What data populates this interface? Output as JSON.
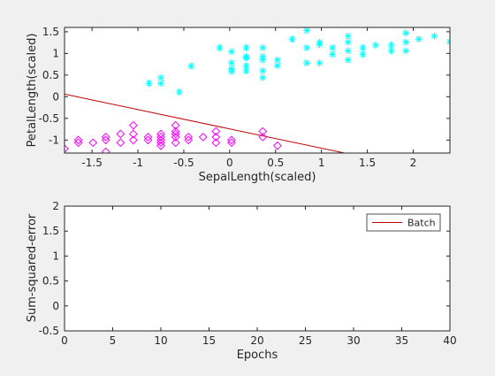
{
  "figure": {
    "background": "#f0f0f0",
    "axes_color": "#262626",
    "plot_background": "#ffffff"
  },
  "chart_data": [
    {
      "type": "scatter",
      "title": "",
      "xlabel": "SepalLength(scaled)",
      "ylabel": "PetalLength(scaled)",
      "xlim": [
        -1.8,
        2.4
      ],
      "ylim": [
        -1.3,
        1.6
      ],
      "xticks": [
        -1.5,
        -1,
        -0.5,
        0,
        0.5,
        1,
        1.5,
        2
      ],
      "xtick_labels": [
        "-1.5",
        "-1",
        "-0.5",
        "0",
        "0.5",
        "1",
        "1.5",
        "2"
      ],
      "yticks": [
        -1,
        -0.5,
        0,
        0.5,
        1,
        1.5
      ],
      "ytick_labels": [
        "-1",
        "-0.5",
        "0",
        "0.5",
        "1",
        "1.5"
      ],
      "grid": false,
      "series": [
        {
          "marker": "asterisk",
          "color": "#00ffff",
          "points": [
            [
              -0.88,
              0.31
            ],
            [
              -0.75,
              0.44
            ],
            [
              -0.75,
              0.31
            ],
            [
              -0.55,
              0.11
            ],
            [
              -0.42,
              0.71
            ],
            [
              -0.11,
              1.13
            ],
            [
              0.02,
              0.58
            ],
            [
              0.02,
              0.78
            ],
            [
              0.02,
              1.04
            ],
            [
              0.02,
              0.65
            ],
            [
              0.18,
              0.6
            ],
            [
              0.18,
              0.71
            ],
            [
              0.18,
              0.9
            ],
            [
              0.18,
              1.13
            ],
            [
              0.18,
              0.92
            ],
            [
              0.36,
              0.85
            ],
            [
              0.36,
              0.93
            ],
            [
              0.36,
              0.44
            ],
            [
              0.36,
              0.6
            ],
            [
              0.36,
              1.13
            ],
            [
              0.52,
              0.72
            ],
            [
              0.52,
              0.85
            ],
            [
              0.68,
              1.33
            ],
            [
              0.84,
              1.13
            ],
            [
              0.84,
              0.78
            ],
            [
              0.84,
              1.53
            ],
            [
              0.98,
              1.26
            ],
            [
              0.98,
              1.2
            ],
            [
              0.98,
              0.78
            ],
            [
              1.12,
              1.13
            ],
            [
              1.12,
              0.98
            ],
            [
              1.29,
              1.06
            ],
            [
              1.29,
              1.4
            ],
            [
              1.29,
              1.26
            ],
            [
              1.29,
              0.85
            ],
            [
              1.45,
              1.13
            ],
            [
              1.45,
              0.98
            ],
            [
              1.59,
              1.19
            ],
            [
              1.76,
              1.19
            ],
            [
              1.76,
              1.06
            ],
            [
              1.92,
              1.26
            ],
            [
              1.92,
              1.06
            ],
            [
              1.92,
              1.47
            ],
            [
              2.06,
              1.33
            ],
            [
              2.23,
              1.4
            ],
            [
              2.4,
              1.27
            ]
          ]
        },
        {
          "marker": "diamond",
          "color": "#ff00ff",
          "points": [
            [
              -1.8,
              -1.2
            ],
            [
              -1.65,
              -1.06
            ],
            [
              -1.65,
              -1.0
            ],
            [
              -1.49,
              -1.06
            ],
            [
              -1.35,
              -1.0
            ],
            [
              -1.35,
              -1.27
            ],
            [
              -1.35,
              -0.93
            ],
            [
              -1.19,
              -1.06
            ],
            [
              -1.19,
              -0.86
            ],
            [
              -1.05,
              -1.0
            ],
            [
              -1.05,
              -0.86
            ],
            [
              -1.05,
              -0.66
            ],
            [
              -0.89,
              -1.0
            ],
            [
              -0.89,
              -0.93
            ],
            [
              -0.75,
              -1.13
            ],
            [
              -0.75,
              -1.06
            ],
            [
              -0.75,
              -0.93
            ],
            [
              -0.75,
              -0.86
            ],
            [
              -0.75,
              -1.0
            ],
            [
              -0.59,
              -1.06
            ],
            [
              -0.59,
              -0.93
            ],
            [
              -0.59,
              -0.8
            ],
            [
              -0.59,
              -0.66
            ],
            [
              -0.59,
              -0.86
            ],
            [
              -0.45,
              -1.0
            ],
            [
              -0.45,
              -0.93
            ],
            [
              -0.29,
              -0.93
            ],
            [
              -0.15,
              -1.06
            ],
            [
              -0.15,
              -0.8
            ],
            [
              -0.15,
              -0.93
            ],
            [
              0.02,
              -1.0
            ],
            [
              0.02,
              -1.06
            ],
            [
              0.36,
              -0.93
            ],
            [
              0.36,
              -0.8
            ],
            [
              0.52,
              -1.13
            ]
          ]
        }
      ],
      "decision_line": {
        "color": "#c00000",
        "points": [
          [
            -1.8,
            0.06
          ],
          [
            1.25,
            -1.3
          ]
        ]
      }
    },
    {
      "type": "line",
      "title": "",
      "xlabel": "Epochs",
      "ylabel": "Sum-squared-error",
      "xlim": [
        0,
        40
      ],
      "ylim": [
        -0.5,
        2
      ],
      "xticks": [
        0,
        5,
        10,
        15,
        20,
        25,
        30,
        35,
        40
      ],
      "xtick_labels": [
        "0",
        "5",
        "10",
        "15",
        "20",
        "25",
        "30",
        "35",
        "40"
      ],
      "yticks": [
        -0.5,
        0,
        0.5,
        1,
        1.5,
        2
      ],
      "ytick_labels": [
        "-0.5",
        "0",
        "0.5",
        "1",
        "1.5",
        "2"
      ],
      "grid": false,
      "legend": {
        "placement": "top-right",
        "entries": [
          "Batch"
        ]
      },
      "series": [
        {
          "name": "Batch",
          "color": "#c00000",
          "values": []
        }
      ]
    }
  ]
}
